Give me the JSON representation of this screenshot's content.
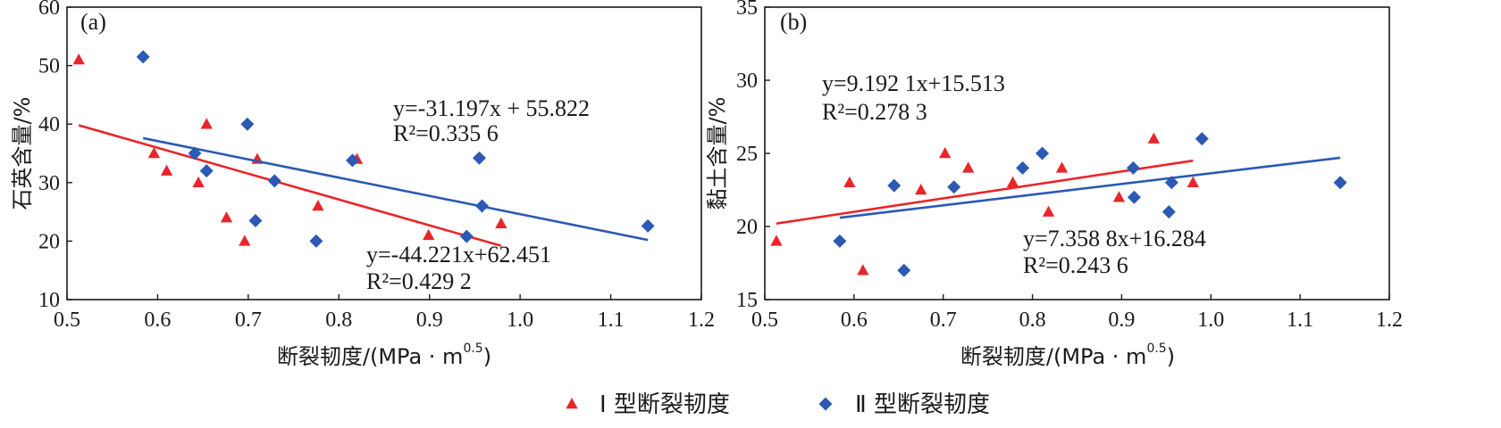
{
  "chart_data": [
    {
      "type": "scatter",
      "panel_label": "(a)",
      "xlabel": "断裂韧度/(MPa · m",
      "xlabel_sup": "0.5",
      "xlabel_end": ")",
      "ylabel": "石英含量/%",
      "xlim": [
        0.5,
        1.2
      ],
      "ylim": [
        10,
        60
      ],
      "xticks": [
        "0.5",
        "0.6",
        "0.7",
        "0.8",
        "0.9",
        "1.0",
        "1.1",
        "1.2"
      ],
      "yticks": [
        "10",
        "20",
        "30",
        "40",
        "50",
        "60"
      ],
      "series": [
        {
          "name": "Ⅰ 型断裂韧度",
          "marker": "triangle",
          "color": "#e8262a",
          "points": [
            [
              0.513,
              51
            ],
            [
              0.596,
              35
            ],
            [
              0.61,
              32
            ],
            [
              0.645,
              30
            ],
            [
              0.654,
              40
            ],
            [
              0.676,
              24
            ],
            [
              0.696,
              20
            ],
            [
              0.71,
              34
            ],
            [
              0.777,
              26
            ],
            [
              0.82,
              34
            ],
            [
              0.899,
              21
            ],
            [
              0.979,
              23
            ]
          ],
          "fit": {
            "x": [
              0.513,
              0.979
            ],
            "y": [
              39.8,
              19.2
            ]
          },
          "equation": "y=-44.221x+62.451",
          "r2": "R²=0.429 2"
        },
        {
          "name": "Ⅱ 型断裂韧度",
          "marker": "diamond",
          "color": "#2b59b4",
          "points": [
            [
              0.584,
              51.5
            ],
            [
              0.641,
              35
            ],
            [
              0.654,
              32
            ],
            [
              0.699,
              40
            ],
            [
              0.708,
              23.5
            ],
            [
              0.729,
              30.3
            ],
            [
              0.775,
              20
            ],
            [
              0.815,
              33.8
            ],
            [
              0.941,
              20.8
            ],
            [
              0.955,
              34.2
            ],
            [
              0.958,
              26
            ],
            [
              1.141,
              22.6
            ]
          ],
          "fit": {
            "x": [
              0.584,
              1.141
            ],
            "y": [
              37.6,
              20.2
            ]
          },
          "equation": "y=-31.197x + 55.822",
          "r2": "R²=0.335 6"
        }
      ]
    },
    {
      "type": "scatter",
      "panel_label": "(b)",
      "xlabel": "断裂韧度/(MPa · m",
      "xlabel_sup": "0.5",
      "xlabel_end": ")",
      "ylabel": "黏土含量/%",
      "xlim": [
        0.5,
        1.2
      ],
      "ylim": [
        15,
        35
      ],
      "xticks": [
        "0.5",
        "0.6",
        "0.7",
        "0.8",
        "0.9",
        "1.0",
        "1.1",
        "1.2"
      ],
      "yticks": [
        "15",
        "20",
        "25",
        "30",
        "35"
      ],
      "series": [
        {
          "name": "Ⅰ 型断裂韧度",
          "marker": "triangle",
          "color": "#e8262a",
          "points": [
            [
              0.513,
              19
            ],
            [
              0.595,
              23
            ],
            [
              0.61,
              17
            ],
            [
              0.675,
              22.5
            ],
            [
              0.702,
              25
            ],
            [
              0.728,
              24
            ],
            [
              0.778,
              23
            ],
            [
              0.818,
              21
            ],
            [
              0.833,
              24
            ],
            [
              0.897,
              22
            ],
            [
              0.936,
              26
            ],
            [
              0.98,
              23
            ]
          ],
          "fit": {
            "x": [
              0.513,
              0.98
            ],
            "y": [
              20.2,
              24.5
            ]
          },
          "equation": "y=9.192 1x+15.513",
          "r2": "R²=0.278 3"
        },
        {
          "name": "Ⅱ 型断裂韧度",
          "marker": "diamond",
          "color": "#2b59b4",
          "points": [
            [
              0.584,
              19
            ],
            [
              0.645,
              22.8
            ],
            [
              0.656,
              17
            ],
            [
              0.712,
              22.7
            ],
            [
              0.789,
              24
            ],
            [
              0.811,
              25
            ],
            [
              0.913,
              24
            ],
            [
              0.914,
              22
            ],
            [
              0.953,
              21
            ],
            [
              0.956,
              23
            ],
            [
              0.99,
              26
            ],
            [
              1.145,
              23
            ]
          ],
          "fit": {
            "x": [
              0.584,
              1.145
            ],
            "y": [
              20.6,
              24.7
            ]
          },
          "equation": "y=7.358 8x+16.284",
          "r2": "R²=0.243 6"
        }
      ]
    }
  ],
  "legend": [
    {
      "label": "Ⅰ 型断裂韧度",
      "marker": "triangle",
      "color": "#e8262a"
    },
    {
      "label": "Ⅱ 型断裂韧度",
      "marker": "diamond",
      "color": "#2b59b4"
    }
  ]
}
